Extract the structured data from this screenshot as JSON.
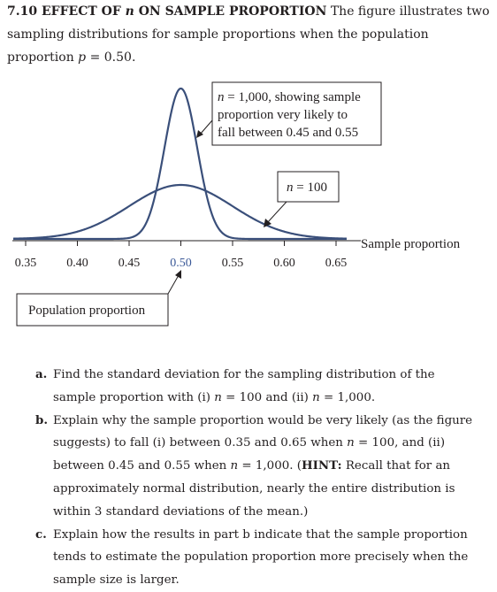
{
  "heading": {
    "number_title_pre": "7.10 EFFECT OF ",
    "number_title_var": "n",
    "number_title_post": " ON SAMPLE PROPORTION",
    "body_1": " The figure illustrates two sampling distributions for sample proportions when the population proportion ",
    "p_var": "p",
    "body_2": " = 0.50."
  },
  "figure": {
    "callout_large_n": {
      "line1_var": "n",
      "line1_rest": " = 1,000, showing sample",
      "line2": "proportion very likely to",
      "line3": "fall between 0.45 and 0.55"
    },
    "callout_small_n": {
      "var": "n",
      "rest": " = 100"
    },
    "axis_label": "Sample proportion",
    "population_label": "Population proportion",
    "ticks": [
      "0.35",
      "0.40",
      "0.45",
      "0.50",
      "0.55",
      "0.60",
      "0.65"
    ],
    "highlight_tick": "0.50",
    "distributions": [
      {
        "n": 100,
        "mean": 0.5,
        "sd": 0.05
      },
      {
        "n": 1000,
        "mean": 0.5,
        "sd": 0.0158
      }
    ],
    "x_range": [
      0.35,
      0.65
    ],
    "colors": {
      "curve": "#3a4f7a",
      "highlight_tick": "#3b5998",
      "text": "#231f20"
    }
  },
  "questions": [
    {
      "letter": "a.",
      "t1": "Find the standard deviation for the sampling distribution of the sample proportion with (i) ",
      "v1": "n",
      "t2": " = 100 and (ii) ",
      "v2": "n",
      "t3": " = 1,000."
    },
    {
      "letter": "b.",
      "t1": "Explain why the sample proportion would be very likely (as the figure suggests) to fall (i) between 0.35 and 0.65 when ",
      "v1": "n",
      "t2": " = 100, and (ii) between 0.45 and 0.55 when ",
      "v2": "n",
      "t3": " = 1,000. (",
      "hint": "HINT:",
      "t4": " Recall that for an approximately normal distribution, nearly the entire distribution is within 3 standard deviations of the mean.)"
    },
    {
      "letter": "c.",
      "t1": "Explain how the results in part b indicate that the sample proportion tends to estimate the population proportion more precisely when the sample size is larger."
    }
  ]
}
